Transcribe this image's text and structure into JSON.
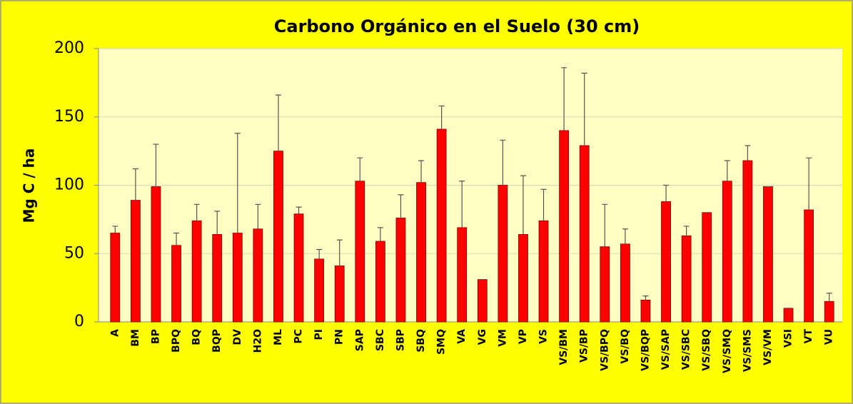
{
  "chart_data": {
    "type": "bar",
    "title": "Carbono Orgánico en el Suelo (30 cm)",
    "y_label": "Mg C / ha",
    "categories": [
      "A",
      "BM",
      "BP",
      "BPQ",
      "BQ",
      "BQP",
      "DV",
      "H2O",
      "ML",
      "PC",
      "PI",
      "PN",
      "SAP",
      "SBC",
      "SBP",
      "SBQ",
      "SMQ",
      "VA",
      "VG",
      "VM",
      "VP",
      "VS",
      "VS/BM",
      "VS/BP",
      "VS/BPQ",
      "VS/BQ",
      "VS/BQP",
      "VS/SAP",
      "VS/SBC",
      "VS/SBQ",
      "VS/SMQ",
      "VS/SMS",
      "VS/VM",
      "VSI",
      "VT",
      "VU"
    ],
    "values": [
      65,
      89,
      99,
      56,
      74,
      64,
      65,
      68,
      125,
      79,
      46,
      41,
      103,
      59,
      76,
      102,
      141,
      69,
      31,
      100,
      64,
      74,
      140,
      129,
      55,
      57,
      16,
      88,
      63,
      80,
      103,
      118,
      99,
      10,
      82,
      15
    ],
    "errors": [
      5,
      23,
      31,
      9,
      12,
      17,
      73,
      18,
      41,
      5,
      7,
      19,
      17,
      10,
      17,
      16,
      17,
      34,
      0,
      33,
      43,
      23,
      46,
      53,
      31,
      11,
      3,
      12,
      7,
      0,
      15,
      11,
      0,
      0,
      38,
      6
    ],
    "color": "#ff0000",
    "ylim": [
      0,
      200
    ],
    "yticks": [
      0,
      50,
      100,
      150,
      200
    ],
    "grid": true
  }
}
